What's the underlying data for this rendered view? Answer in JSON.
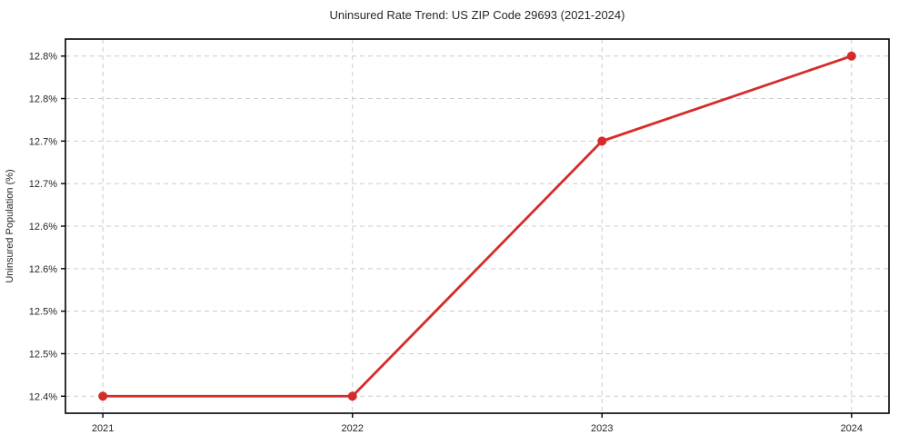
{
  "title": "Uninsured Rate Trend: US ZIP Code 29693 (2021-2024)",
  "colors": {
    "line": "#d62b2b",
    "marker": "#d62b2b",
    "grid": "#cccccc",
    "spine": "#000000",
    "text": "#262626",
    "background": "#ffffff"
  },
  "chart_data": {
    "type": "line",
    "title": "Uninsured Rate Trend: US ZIP Code 29693 (2021-2024)",
    "xlabel": "",
    "ylabel": "Uninsured Population (%)",
    "x": [
      2021,
      2022,
      2023,
      2024
    ],
    "x_tick_labels": [
      "2021",
      "2022",
      "2023",
      "2024"
    ],
    "series": [
      {
        "name": "Uninsured Rate",
        "values": [
          12.4,
          12.4,
          12.7,
          12.8
        ]
      }
    ],
    "y_ticks": [
      12.4,
      12.45,
      12.5,
      12.55,
      12.6,
      12.65,
      12.7,
      12.75,
      12.8
    ],
    "y_tick_labels": [
      "12.4%",
      "12.5%",
      "12.5%",
      "12.6%",
      "12.6%",
      "12.7%",
      "12.7%",
      "12.8%",
      "12.8%"
    ],
    "xlim": [
      2020.85,
      2024.15
    ],
    "ylim": [
      12.38,
      12.82
    ],
    "grid": true,
    "grid_style": "dashed",
    "legend": false
  }
}
